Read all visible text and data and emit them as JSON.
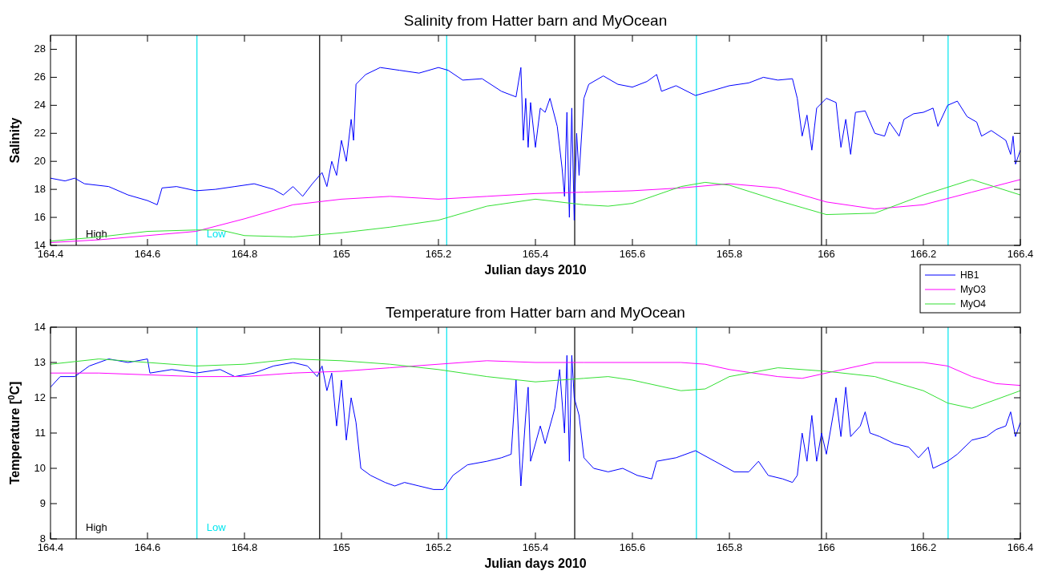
{
  "chart_data": [
    {
      "type": "line",
      "title": "Salinity from Hatter barn and MyOcean",
      "xlabel": "Julian days 2010",
      "ylabel": "Salinity",
      "xlim": [
        164.4,
        166.4
      ],
      "xticks": [
        164.4,
        164.6,
        164.8,
        165,
        165.2,
        165.4,
        165.6,
        165.8,
        166,
        166.2,
        166.4
      ],
      "ylim": [
        14,
        29
      ],
      "yticks": [
        14,
        16,
        18,
        20,
        22,
        24,
        26,
        28
      ],
      "grid": false,
      "legend": "bottom right",
      "line_style": "solid",
      "ref_lines": [
        {
          "axis": "x",
          "value": 164.453,
          "label": "High",
          "color": "#000000"
        },
        {
          "axis": "x",
          "value": 164.702,
          "label": "Low",
          "color": "#00e5ee"
        },
        {
          "axis": "x",
          "value": 164.955,
          "color": "#000000"
        },
        {
          "axis": "x",
          "value": 165.217,
          "color": "#00e5ee"
        },
        {
          "axis": "x",
          "value": 165.481,
          "color": "#000000"
        },
        {
          "axis": "x",
          "value": 165.732,
          "color": "#00e5ee"
        },
        {
          "axis": "x",
          "value": 165.99,
          "color": "#000000"
        },
        {
          "axis": "x",
          "value": 166.251,
          "color": "#00e5ee"
        }
      ],
      "series": [
        {
          "name": "HB1",
          "color": "#0000ff",
          "x": [
            164.4,
            164.43,
            164.45,
            164.47,
            164.52,
            164.56,
            164.6,
            164.62,
            164.63,
            164.66,
            164.7,
            164.74,
            164.78,
            164.82,
            164.86,
            164.88,
            164.9,
            164.92,
            164.94,
            164.96,
            164.97,
            164.98,
            164.99,
            165,
            165.01,
            165.02,
            165.025,
            165.03,
            165.05,
            165.08,
            165.12,
            165.16,
            165.2,
            165.22,
            165.25,
            165.29,
            165.33,
            165.36,
            165.37,
            165.375,
            165.38,
            165.385,
            165.39,
            165.4,
            165.41,
            165.42,
            165.43,
            165.445,
            165.455,
            165.46,
            165.465,
            165.47,
            165.475,
            165.48,
            165.485,
            165.49,
            165.5,
            165.51,
            165.54,
            165.57,
            165.6,
            165.63,
            165.65,
            165.66,
            165.69,
            165.73,
            165.76,
            165.8,
            165.84,
            165.87,
            165.9,
            165.93,
            165.94,
            165.95,
            165.96,
            165.97,
            165.98,
            166,
            166.02,
            166.03,
            166.04,
            166.05,
            166.06,
            166.08,
            166.1,
            166.12,
            166.13,
            166.15,
            166.16,
            166.18,
            166.2,
            166.22,
            166.23,
            166.25,
            166.27,
            166.29,
            166.31,
            166.32,
            166.34,
            166.37,
            166.38,
            166.385,
            166.39,
            166.4
          ],
          "values": [
            18.8,
            18.6,
            18.8,
            18.4,
            18.2,
            17.6,
            17.2,
            16.9,
            18.1,
            18.2,
            17.9,
            18,
            18.2,
            18.4,
            18,
            17.6,
            18.2,
            17.5,
            18.4,
            19.2,
            18.2,
            20,
            19,
            21.5,
            20,
            23,
            21.5,
            25.5,
            26.2,
            26.7,
            26.5,
            26.3,
            26.7,
            26.5,
            25.8,
            25.9,
            25,
            24.6,
            26.7,
            21.5,
            24.5,
            21,
            24.2,
            21,
            23.8,
            23.5,
            24.5,
            22.5,
            19.5,
            17.5,
            23.5,
            16,
            23.8,
            15.8,
            22,
            19,
            24.5,
            25.5,
            26.1,
            25.5,
            25.3,
            25.7,
            26.2,
            25,
            25.4,
            24.7,
            25,
            25.4,
            25.6,
            26,
            25.8,
            25.9,
            24.5,
            21.8,
            23.3,
            20.8,
            23.8,
            24.5,
            24.2,
            21,
            23,
            20.5,
            23.5,
            23.6,
            22,
            21.8,
            22.8,
            21.8,
            23,
            23.4,
            23.5,
            23.8,
            22.5,
            24,
            24.3,
            23.2,
            22.8,
            21.8,
            22.2,
            21.5,
            20.5,
            21.8,
            19.8,
            20.8
          ]
        },
        {
          "name": "MyO3",
          "color": "#ff00ff",
          "x": [
            164.4,
            164.5,
            164.6,
            164.7,
            164.8,
            164.9,
            165,
            165.1,
            165.2,
            165.3,
            165.4,
            165.5,
            165.6,
            165.7,
            165.8,
            165.9,
            166,
            166.1,
            166.2,
            166.3,
            166.4
          ],
          "values": [
            14.2,
            14.4,
            14.7,
            15,
            15.9,
            16.9,
            17.3,
            17.5,
            17.3,
            17.5,
            17.7,
            17.8,
            17.9,
            18.1,
            18.4,
            18.1,
            17.1,
            16.6,
            16.9,
            17.8,
            18.7
          ]
        },
        {
          "name": "MyO4",
          "color": "#33e033",
          "x": [
            164.4,
            164.5,
            164.6,
            164.7,
            164.75,
            164.8,
            164.9,
            165,
            165.1,
            165.2,
            165.3,
            165.4,
            165.5,
            165.55,
            165.6,
            165.7,
            165.75,
            165.8,
            165.9,
            166,
            166.1,
            166.2,
            166.3,
            166.4
          ],
          "values": [
            14.3,
            14.6,
            15,
            15.1,
            15.1,
            14.7,
            14.6,
            14.9,
            15.3,
            15.8,
            16.8,
            17.3,
            16.9,
            16.8,
            17,
            18.2,
            18.5,
            18.3,
            17.2,
            16.2,
            16.3,
            17.6,
            18.7,
            17.6
          ]
        }
      ]
    },
    {
      "type": "line",
      "title": "Temperature from Hatter barn and MyOcean",
      "xlabel": "Julian days 2010",
      "ylabel": "Temperature [$^{0}$C]",
      "xlim": [
        164.4,
        166.4
      ],
      "xticks": [
        164.4,
        164.6,
        164.8,
        165,
        165.2,
        165.4,
        165.6,
        165.8,
        166,
        166.2,
        166.4
      ],
      "ylim": [
        8,
        14
      ],
      "yticks": [
        8,
        9,
        10,
        11,
        12,
        13,
        14
      ],
      "grid": false,
      "line_style": "solid",
      "ref_lines": [
        {
          "axis": "x",
          "value": 164.453,
          "label": "High",
          "color": "#000000"
        },
        {
          "axis": "x",
          "value": 164.702,
          "label": "Low",
          "color": "#00e5ee"
        },
        {
          "axis": "x",
          "value": 164.955,
          "color": "#000000"
        },
        {
          "axis": "x",
          "value": 165.217,
          "color": "#00e5ee"
        },
        {
          "axis": "x",
          "value": 165.481,
          "color": "#000000"
        },
        {
          "axis": "x",
          "value": 165.732,
          "color": "#00e5ee"
        },
        {
          "axis": "x",
          "value": 165.99,
          "color": "#000000"
        },
        {
          "axis": "x",
          "value": 166.251,
          "color": "#00e5ee"
        }
      ],
      "series": [
        {
          "color": "#0000ff",
          "x": [
            164.4,
            164.42,
            164.45,
            164.48,
            164.52,
            164.56,
            164.6,
            164.605,
            164.65,
            164.7,
            164.75,
            164.78,
            164.82,
            164.86,
            164.9,
            164.93,
            164.95,
            164.96,
            164.97,
            164.98,
            164.99,
            165,
            165.01,
            165.02,
            165.03,
            165.04,
            165.06,
            165.09,
            165.11,
            165.13,
            165.16,
            165.19,
            165.21,
            165.23,
            165.26,
            165.3,
            165.33,
            165.35,
            165.36,
            165.37,
            165.38,
            165.385,
            165.39,
            165.41,
            165.42,
            165.44,
            165.45,
            165.46,
            165.465,
            165.47,
            165.475,
            165.48,
            165.49,
            165.5,
            165.52,
            165.55,
            165.58,
            165.61,
            165.64,
            165.65,
            165.69,
            165.73,
            165.77,
            165.81,
            165.84,
            165.86,
            165.88,
            165.91,
            165.93,
            165.94,
            165.95,
            165.96,
            165.97,
            165.98,
            165.99,
            166,
            166.02,
            166.03,
            166.04,
            166.05,
            166.07,
            166.08,
            166.09,
            166.11,
            166.14,
            166.17,
            166.19,
            166.21,
            166.22,
            166.25,
            166.27,
            166.3,
            166.33,
            166.35,
            166.37,
            166.38,
            166.39,
            166.4
          ],
          "values": [
            12.3,
            12.6,
            12.6,
            12.9,
            13.1,
            13,
            13.1,
            12.7,
            12.8,
            12.7,
            12.8,
            12.6,
            12.7,
            12.9,
            13,
            12.9,
            12.6,
            12.9,
            12.2,
            12.7,
            11.2,
            12.5,
            10.8,
            12,
            11.3,
            10,
            9.8,
            9.6,
            9.5,
            9.6,
            9.5,
            9.4,
            9.4,
            9.8,
            10.1,
            10.2,
            10.3,
            10.4,
            12.5,
            9.5,
            11.5,
            12.3,
            10.2,
            11.2,
            10.7,
            11.7,
            12.8,
            11,
            13.2,
            10.2,
            13.2,
            12,
            11.5,
            10.3,
            10,
            9.9,
            10,
            9.8,
            9.7,
            10.2,
            10.3,
            10.5,
            10.2,
            9.9,
            9.9,
            10.2,
            9.8,
            9.7,
            9.6,
            9.8,
            11,
            10.2,
            11.5,
            10.2,
            11,
            10.4,
            12,
            10.9,
            12.3,
            10.9,
            11.2,
            11.6,
            11,
            10.9,
            10.7,
            10.6,
            10.3,
            10.6,
            10,
            10.2,
            10.4,
            10.8,
            10.9,
            11.1,
            11.2,
            11.6,
            10.9,
            11.3
          ]
        },
        {
          "color": "#ff00ff",
          "x": [
            164.4,
            164.5,
            164.6,
            164.7,
            164.8,
            164.9,
            165,
            165.1,
            165.2,
            165.3,
            165.4,
            165.5,
            165.6,
            165.7,
            165.75,
            165.8,
            165.9,
            165.95,
            166,
            166.1,
            166.2,
            166.25,
            166.3,
            166.35,
            166.4
          ],
          "values": [
            12.7,
            12.7,
            12.65,
            12.6,
            12.6,
            12.7,
            12.75,
            12.85,
            12.95,
            13.05,
            13,
            13,
            13,
            13,
            12.95,
            12.8,
            12.6,
            12.55,
            12.7,
            13,
            13,
            12.9,
            12.6,
            12.4,
            12.35
          ]
        },
        {
          "color": "#33e033",
          "x": [
            164.4,
            164.5,
            164.6,
            164.7,
            164.8,
            164.9,
            165,
            165.1,
            165.2,
            165.3,
            165.4,
            165.5,
            165.55,
            165.6,
            165.7,
            165.75,
            165.8,
            165.9,
            166,
            166.1,
            166.2,
            166.25,
            166.3,
            166.4
          ],
          "values": [
            12.95,
            13.1,
            13,
            12.9,
            12.95,
            13.1,
            13.05,
            12.95,
            12.8,
            12.6,
            12.45,
            12.55,
            12.6,
            12.5,
            12.2,
            12.25,
            12.6,
            12.85,
            12.75,
            12.6,
            12.2,
            11.85,
            11.7,
            12.2
          ]
        }
      ]
    }
  ]
}
